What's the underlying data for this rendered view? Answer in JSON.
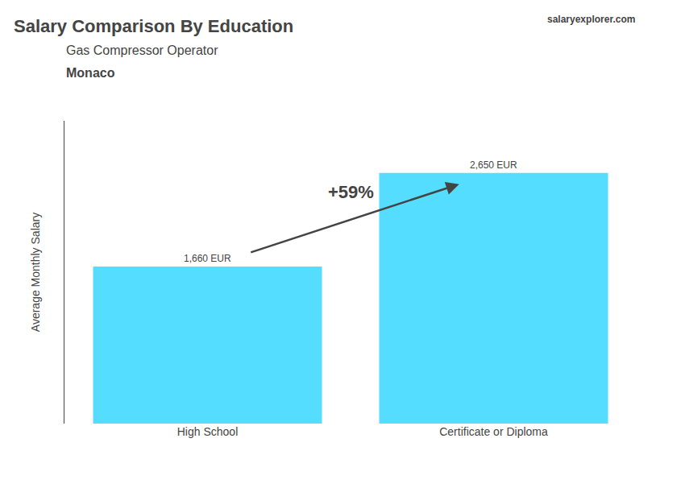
{
  "chart_data": {
    "type": "bar",
    "title": "Salary Comparison By Education",
    "subtitle": [
      "Gas Compressor Operator",
      "Monaco"
    ],
    "ylabel": "Average Monthly Salary",
    "categories": [
      "High School",
      "Certificate or Diploma"
    ],
    "values": [
      1660,
      2650
    ],
    "value_labels": [
      "1,660 EUR",
      "2,650 EUR"
    ],
    "data_labels": true,
    "color": "#55ddff",
    "ylim": [
      0,
      3200
    ],
    "grid": false,
    "tick_labels": "x",
    "annotations": [
      "+59%",
      "salaryexplorer.com"
    ]
  }
}
